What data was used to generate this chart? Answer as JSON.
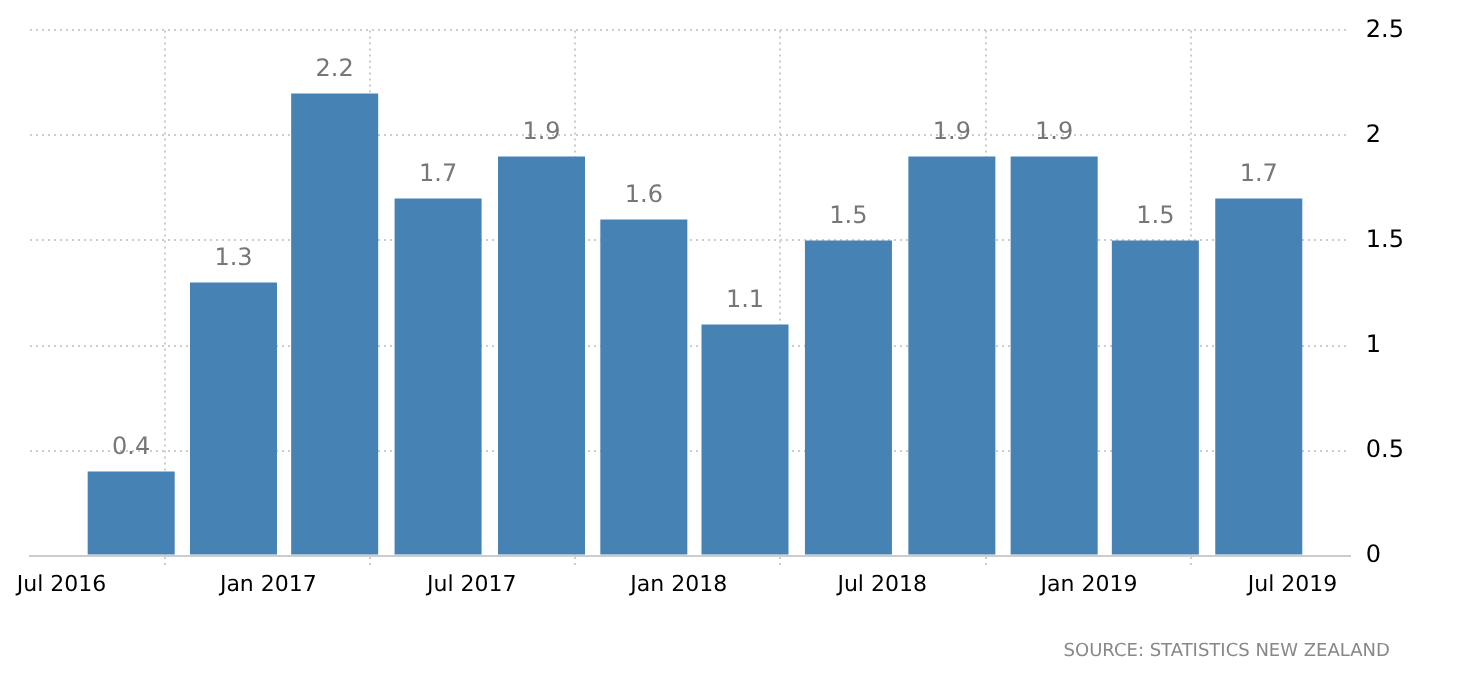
{
  "chart_data": {
    "type": "bar",
    "x": [
      "2016-09",
      "2016-12",
      "2017-03",
      "2017-06",
      "2017-09",
      "2017-12",
      "2018-03",
      "2018-06",
      "2018-09",
      "2018-12",
      "2019-03",
      "2019-06"
    ],
    "values": [
      0.4,
      1.3,
      2.2,
      1.7,
      1.9,
      1.6,
      1.1,
      1.5,
      1.9,
      1.9,
      1.5,
      1.7
    ],
    "color": "#4682b4",
    "xlim": [
      "2016-06-03",
      "2019-08-21"
    ],
    "xticks": [
      {
        "value": "2016-07",
        "label": "Jul 2016"
      },
      {
        "value": "2017-01",
        "label": "Jan 2017"
      },
      {
        "value": "2017-07",
        "label": "Jul 2017"
      },
      {
        "value": "2018-01",
        "label": "Jan 2018"
      },
      {
        "value": "2018-07",
        "label": "Jul 2018"
      },
      {
        "value": "2019-01",
        "label": "Jan 2019"
      },
      {
        "value": "2019-07",
        "label": "Jul 2019"
      }
    ],
    "ylim": [
      0,
      2.5
    ],
    "yticks": [
      0,
      0.5,
      1,
      1.5,
      2,
      2.5
    ],
    "grid": true,
    "data_labels": true,
    "legend": false,
    "annotations": [
      "SOURCE: STATISTICS NEW ZEALAND"
    ]
  }
}
